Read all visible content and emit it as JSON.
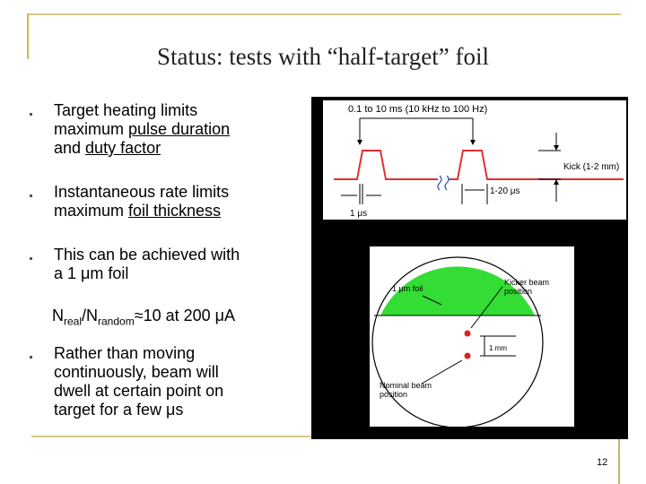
{
  "title": "Status: tests with “half-target” foil",
  "bullets": [
    {
      "lines": [
        [
          {
            "text": "Target heating limits"
          }
        ],
        [
          {
            "text": "maximum "
          },
          {
            "text": "pulse duration",
            "underline": true
          }
        ],
        [
          {
            "text": "and "
          },
          {
            "text": "duty factor",
            "underline": true
          }
        ]
      ]
    },
    {
      "lines": [
        [
          {
            "text": "Instantaneous rate limits"
          }
        ],
        [
          {
            "text": "maximum "
          },
          {
            "text": "foil thickness",
            "underline": true
          }
        ]
      ]
    },
    {
      "lines": [
        [
          {
            "text": "This can be achieved with"
          }
        ],
        [
          {
            "text": "a 1 μm foil"
          }
        ]
      ]
    },
    {
      "lines": [
        [
          {
            "text": "Rather than moving"
          }
        ],
        [
          {
            "text": "continuously, beam will"
          }
        ],
        [
          {
            "text": "dwell at certain point on"
          }
        ],
        [
          {
            "text": "target for a few μs"
          }
        ]
      ]
    }
  ],
  "note": {
    "n1": "N",
    "sub1": "real",
    "n2": "/N",
    "sub2": "random",
    "rest": "≈10 at 200 μA"
  },
  "pulse_diagram": {
    "period": "0.1 to 10 ms (10 kHz to 100 Hz)",
    "kick": "Kick (1-2 mm)",
    "gap": "1-20  μs",
    "width": "1  μs"
  },
  "foil_diagram": {
    "foil": "1 μm foil",
    "kicker": [
      "Kicker beam",
      "position"
    ],
    "offset": "1 mm",
    "nominal": [
      "Nominal beam",
      "position"
    ]
  },
  "page_number": "12"
}
